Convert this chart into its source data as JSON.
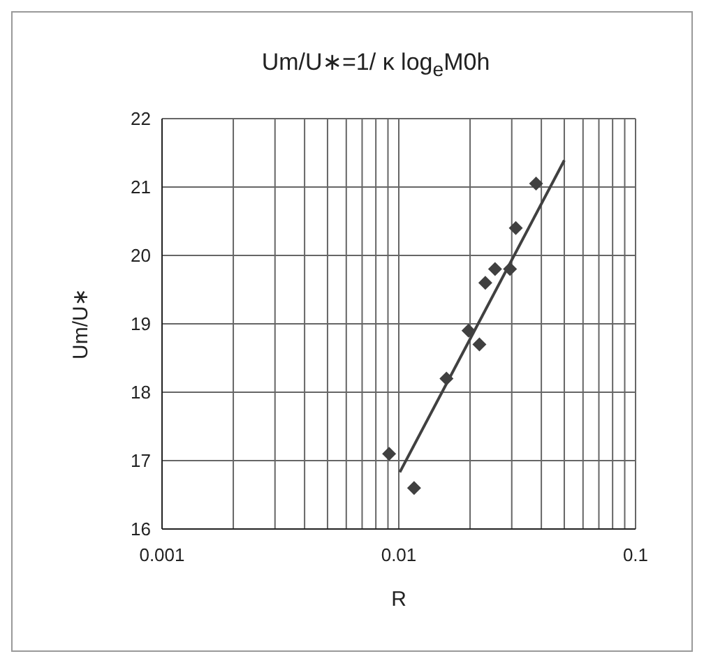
{
  "chart_data": {
    "type": "scatter",
    "title": "Um/U∗=1/ κ log$_{e}$M0h",
    "xlabel": "R",
    "ylabel": "Um/U∗",
    "log": "x",
    "grid": true,
    "legend": false,
    "marker": "diamond",
    "xlim": [
      0.001,
      0.1
    ],
    "ylim": [
      16,
      22
    ],
    "xticks": [
      0.001,
      {
        "value": 0.002,
        "label": null
      },
      {
        "value": 0.003,
        "label": null
      },
      {
        "value": 0.004,
        "label": null
      },
      {
        "value": 0.005,
        "label": null
      },
      {
        "value": 0.006,
        "label": null
      },
      {
        "value": 0.007,
        "label": null
      },
      {
        "value": 0.008,
        "label": null
      },
      {
        "value": 0.009,
        "label": null
      },
      0.01,
      {
        "value": 0.02,
        "label": null
      },
      {
        "value": 0.03,
        "label": null
      },
      {
        "value": 0.04,
        "label": null
      },
      {
        "value": 0.05,
        "label": null
      },
      {
        "value": 0.06,
        "label": null
      },
      {
        "value": 0.07,
        "label": null
      },
      {
        "value": 0.08,
        "label": null
      },
      {
        "value": 0.09,
        "label": null
      },
      0.1
    ],
    "yticks": [
      16,
      17,
      18,
      19,
      20,
      21,
      22
    ],
    "series": [
      {
        "type": "scatter",
        "color": "#404040",
        "x": [
          0.0091,
          0.0116,
          0.0159,
          0.0197,
          0.0219,
          0.0232,
          0.0255,
          0.0295,
          0.0312,
          0.038
        ],
        "values": [
          17.1,
          16.6,
          18.2,
          18.9,
          18.7,
          19.6,
          19.8,
          19.8,
          20.4,
          21.05
        ]
      },
      {
        "type": "line",
        "color": "#404040",
        "marker": "none",
        "x": [
          0.0101,
          0.05
        ],
        "values": [
          16.83,
          21.39
        ]
      }
    ]
  }
}
